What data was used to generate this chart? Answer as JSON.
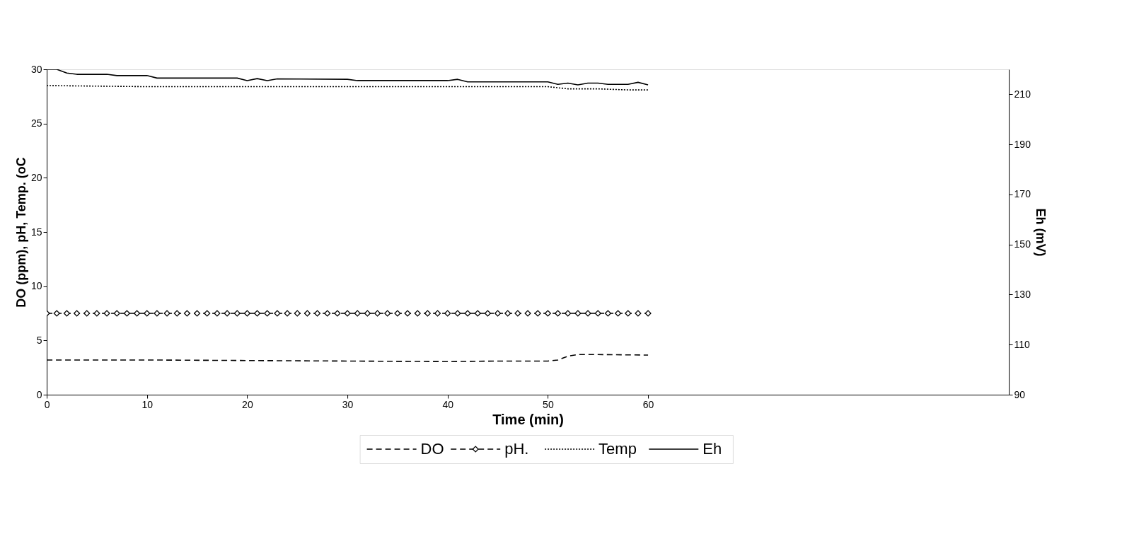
{
  "chart_data": {
    "type": "line",
    "xlabel": "Time (min)",
    "ylabel": "DO (ppm), pH, Temp. (oC",
    "y2label": "Eh (mV)",
    "xlim": [
      0,
      96
    ],
    "xticks": [
      0,
      10,
      20,
      30,
      40,
      50,
      60
    ],
    "ylim": [
      0,
      30
    ],
    "yticks": [
      0,
      5,
      10,
      15,
      20,
      25,
      30
    ],
    "y2lim": [
      90,
      220
    ],
    "y2ticks": [
      90,
      110,
      130,
      150,
      170,
      190,
      210
    ],
    "legend": "bottom",
    "grid": false,
    "series": [
      {
        "name": "DO",
        "color": "#000000",
        "line_style": "dashed",
        "marker": "none",
        "x": [
          0,
          10,
          20,
          30,
          40,
          45,
          50,
          51,
          52,
          53,
          55,
          60
        ],
        "values": [
          3.2,
          3.2,
          3.15,
          3.1,
          3.05,
          3.1,
          3.1,
          3.2,
          3.55,
          3.7,
          3.7,
          3.65
        ]
      },
      {
        "name": "pH.",
        "color": "#000000",
        "line_style": "dashed",
        "marker": "diamond",
        "x": [
          0,
          1,
          2,
          3,
          4,
          5,
          6,
          7,
          8,
          9,
          10,
          11,
          12,
          13,
          14,
          15,
          16,
          17,
          18,
          19,
          20,
          21,
          22,
          23,
          24,
          25,
          26,
          27,
          28,
          29,
          30,
          31,
          32,
          33,
          34,
          35,
          36,
          37,
          38,
          39,
          40,
          41,
          42,
          43,
          44,
          45,
          46,
          47,
          48,
          49,
          50,
          51,
          52,
          53,
          54,
          55,
          56,
          57,
          58,
          59,
          60
        ],
        "values": [
          7.5,
          7.5,
          7.5,
          7.5,
          7.5,
          7.5,
          7.5,
          7.5,
          7.5,
          7.5,
          7.5,
          7.5,
          7.5,
          7.5,
          7.5,
          7.5,
          7.5,
          7.5,
          7.5,
          7.5,
          7.5,
          7.5,
          7.5,
          7.5,
          7.5,
          7.5,
          7.5,
          7.5,
          7.5,
          7.5,
          7.5,
          7.5,
          7.5,
          7.5,
          7.5,
          7.5,
          7.5,
          7.5,
          7.5,
          7.5,
          7.5,
          7.5,
          7.5,
          7.5,
          7.5,
          7.5,
          7.5,
          7.5,
          7.5,
          7.5,
          7.5,
          7.5,
          7.5,
          7.5,
          7.5,
          7.5,
          7.5,
          7.5,
          7.5,
          7.5,
          7.5
        ]
      },
      {
        "name": "Temp",
        "color": "#000000",
        "line_style": "dotted",
        "marker": "none",
        "x": [
          0,
          10,
          20,
          30,
          40,
          48,
          50,
          52,
          55,
          58,
          60
        ],
        "values": [
          28.5,
          28.4,
          28.4,
          28.4,
          28.4,
          28.4,
          28.4,
          28.2,
          28.2,
          28.1,
          28.1
        ]
      },
      {
        "name": "Eh",
        "color": "#000000",
        "line_style": "solid",
        "marker": "none",
        "axis": "y2",
        "x": [
          0,
          1,
          2,
          3,
          6,
          7,
          10,
          11,
          19,
          20,
          21,
          22,
          23,
          30,
          31,
          40,
          41,
          42,
          50,
          51,
          52,
          53,
          54,
          55,
          56,
          58,
          59,
          60
        ],
        "values": [
          220,
          220,
          218.5,
          218,
          218,
          217.5,
          217.5,
          216.5,
          216.5,
          215.5,
          216.3,
          215.5,
          216.2,
          216,
          215.5,
          215.5,
          216,
          215,
          215,
          214,
          214.5,
          213.8,
          214.5,
          214.5,
          214,
          214,
          214.8,
          213.8
        ]
      }
    ]
  }
}
